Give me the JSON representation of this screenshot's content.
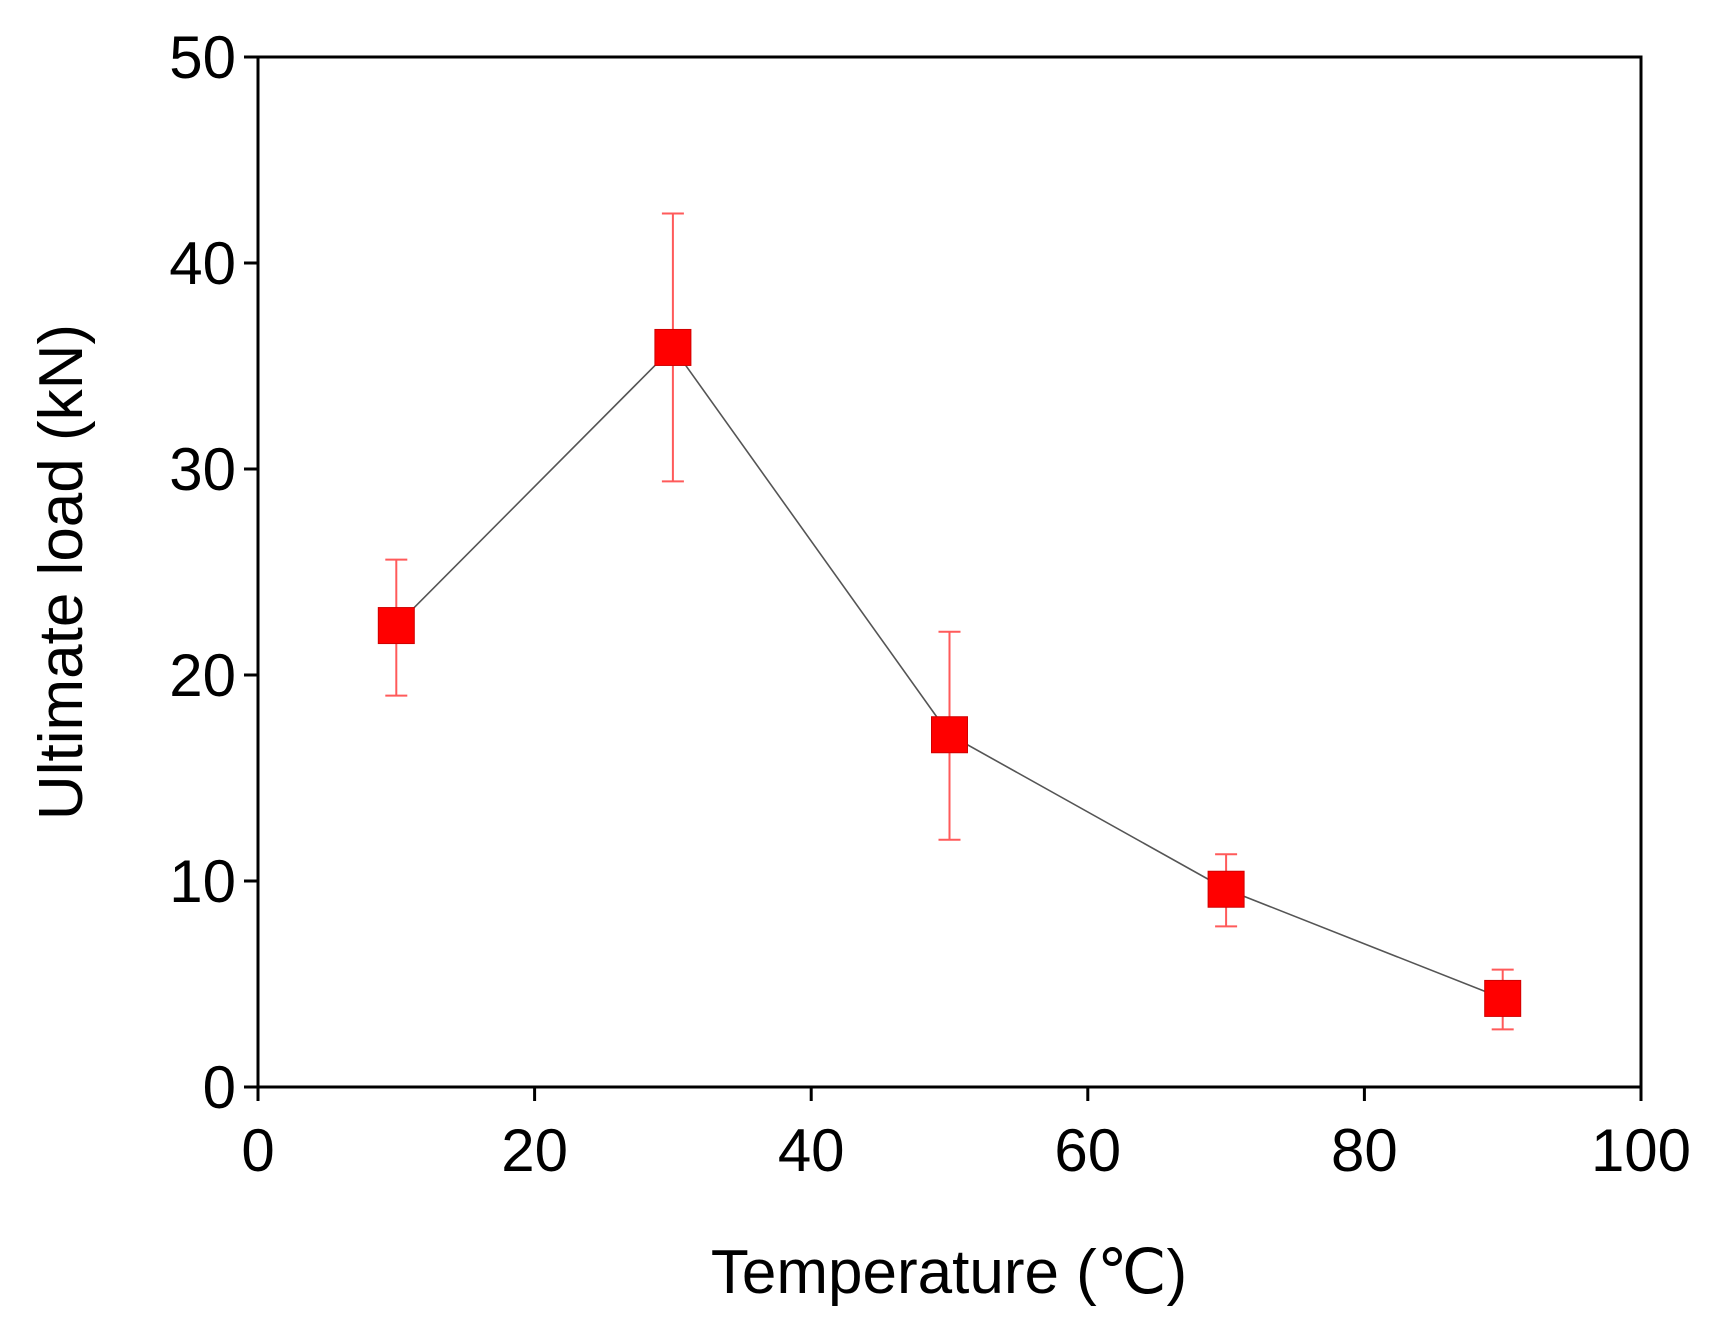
{
  "chart_data": {
    "type": "scatter",
    "title": "",
    "xlabel": "Temperature (℃)",
    "ylabel": "Ultimate load (kN)",
    "xlim": [
      0,
      100
    ],
    "ylim": [
      0,
      50
    ],
    "xticks": [
      0,
      20,
      40,
      60,
      80,
      100
    ],
    "yticks": [
      0,
      10,
      20,
      30,
      40,
      50
    ],
    "grid": false,
    "series": [
      {
        "name": "Ultimate load",
        "marker": "square",
        "line": true,
        "x": [
          10,
          30,
          50,
          70,
          90
        ],
        "y": [
          22.4,
          35.9,
          17.1,
          9.6,
          4.3
        ],
        "err_low": [
          19.0,
          29.4,
          12.0,
          7.8,
          2.8
        ],
        "err_high": [
          25.6,
          42.4,
          22.1,
          11.3,
          5.7
        ]
      }
    ],
    "colors": {
      "marker": "#ff0000",
      "errorbar": "#ff5a5a",
      "line": "#555555",
      "axis": "#000000"
    }
  }
}
